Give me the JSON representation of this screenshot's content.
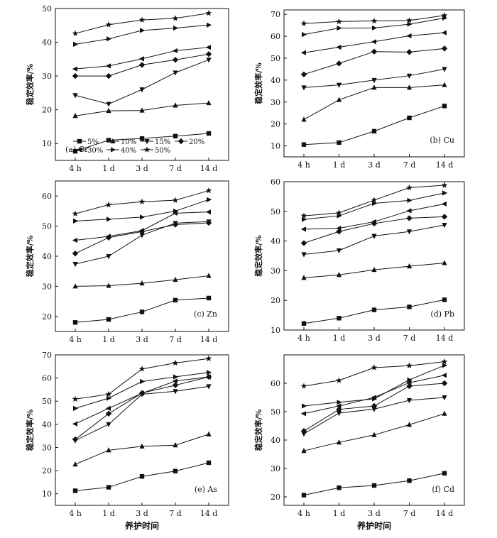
{
  "x_title": "养护时间",
  "legend": [
    "5%",
    "10%",
    "15%",
    "20%",
    "30%",
    "40%",
    "50%"
  ],
  "chart_data": [
    {
      "type": "line",
      "panel_label": "(a)  Cr",
      "ylabel": "稳定效率/%",
      "categories": [
        "4 h",
        "1 d",
        "3 d",
        "7 d",
        "14 d"
      ],
      "ylim": [
        5,
        50
      ],
      "yticks": [
        10,
        20,
        30,
        40,
        50
      ],
      "series": [
        {
          "name": "5%",
          "values": [
            7.7,
            11.0,
            11.5,
            12.2,
            13.0
          ]
        },
        {
          "name": "10%",
          "values": [
            18.2,
            19.7,
            19.8,
            21.3,
            22.0
          ]
        },
        {
          "name": "15%",
          "values": [
            24.3,
            21.7,
            26.0,
            31.0,
            34.8
          ]
        },
        {
          "name": "20%",
          "values": [
            30.0,
            30.0,
            33.3,
            34.8,
            36.5
          ]
        },
        {
          "name": "30%",
          "values": [
            32.1,
            33.0,
            35.1,
            37.5,
            38.5
          ]
        },
        {
          "name": "40%",
          "values": [
            39.4,
            41.0,
            43.5,
            44.2,
            45.1
          ]
        },
        {
          "name": "50%",
          "values": [
            42.6,
            45.2,
            46.6,
            47.1,
            48.6
          ]
        }
      ]
    },
    {
      "type": "line",
      "panel_label": "(b)  Cu",
      "ylabel": "稳定效率/%",
      "categories": [
        "4 h",
        "1 d",
        "3 d",
        "7 d",
        "14 d"
      ],
      "ylim": [
        5,
        72
      ],
      "yticks": [
        10,
        20,
        30,
        40,
        50,
        60,
        70
      ],
      "series": [
        {
          "name": "5%",
          "values": [
            10.6,
            11.5,
            16.7,
            22.8,
            28.2
          ]
        },
        {
          "name": "10%",
          "values": [
            22.0,
            31.0,
            36.6,
            36.6,
            37.8
          ]
        },
        {
          "name": "15%",
          "values": [
            36.6,
            37.8,
            40.0,
            42.0,
            45.0
          ]
        },
        {
          "name": "20%",
          "values": [
            42.6,
            47.6,
            53.0,
            52.8,
            54.4
          ]
        },
        {
          "name": "30%",
          "values": [
            52.5,
            55.0,
            57.5,
            60.2,
            61.6
          ]
        },
        {
          "name": "40%",
          "values": [
            60.8,
            63.7,
            63.8,
            65.5,
            68.3
          ]
        },
        {
          "name": "50%",
          "values": [
            65.8,
            66.7,
            67.0,
            67.2,
            69.5
          ]
        }
      ]
    },
    {
      "type": "line",
      "panel_label": "(c)  Zn",
      "ylabel": "稳定效率/%",
      "categories": [
        "4 h",
        "1 d",
        "3 d",
        "7 d",
        "14 d"
      ],
      "ylim": [
        15,
        65
      ],
      "yticks": [
        20,
        30,
        40,
        50,
        60
      ],
      "series": [
        {
          "name": "5%",
          "values": [
            18.0,
            19.0,
            21.5,
            25.4,
            26.1
          ]
        },
        {
          "name": "10%",
          "values": [
            30.0,
            30.2,
            31.0,
            32.2,
            33.5
          ]
        },
        {
          "name": "15%",
          "values": [
            37.4,
            40.0,
            47.0,
            51.0,
            51.5
          ]
        },
        {
          "name": "20%",
          "values": [
            40.9,
            46.2,
            48.2,
            50.5,
            51.1
          ]
        },
        {
          "name": "30%",
          "values": [
            45.3,
            46.6,
            48.5,
            54.3,
            54.7
          ]
        },
        {
          "name": "40%",
          "values": [
            51.7,
            52.3,
            53.0,
            55.0,
            58.8
          ]
        },
        {
          "name": "50%",
          "values": [
            54.1,
            57.1,
            58.1,
            58.6,
            61.8
          ]
        }
      ]
    },
    {
      "type": "line",
      "panel_label": "(d)  Pb",
      "ylabel": "稳定效率/%",
      "categories": [
        "4 h",
        "1 d",
        "3 d",
        "7 d",
        "14 d"
      ],
      "ylim": [
        10,
        60
      ],
      "yticks": [
        10,
        20,
        30,
        40,
        50,
        60
      ],
      "series": [
        {
          "name": "5%",
          "values": [
            12.2,
            14.0,
            16.8,
            17.8,
            20.2
          ]
        },
        {
          "name": "10%",
          "values": [
            27.6,
            28.6,
            30.3,
            31.5,
            32.6
          ]
        },
        {
          "name": "15%",
          "values": [
            35.5,
            36.8,
            41.7,
            43.2,
            45.4
          ]
        },
        {
          "name": "20%",
          "values": [
            39.3,
            43.2,
            45.9,
            47.7,
            48.2
          ]
        },
        {
          "name": "30%",
          "values": [
            44.0,
            44.3,
            46.5,
            50.2,
            52.5
          ]
        },
        {
          "name": "40%",
          "values": [
            47.3,
            48.5,
            52.7,
            53.7,
            56.2
          ]
        },
        {
          "name": "50%",
          "values": [
            48.5,
            49.5,
            53.8,
            58.0,
            58.8
          ]
        }
      ]
    },
    {
      "type": "line",
      "panel_label": "(e)  As",
      "ylabel": "稳定效率/%",
      "categories": [
        "4 h",
        "1 d",
        "3 d",
        "7 d",
        "14 d"
      ],
      "ylim": [
        5,
        70
      ],
      "yticks": [
        10,
        20,
        30,
        40,
        50,
        60,
        70
      ],
      "series": [
        {
          "name": "5%",
          "values": [
            11.3,
            12.8,
            17.5,
            19.8,
            23.4
          ]
        },
        {
          "name": "10%",
          "values": [
            22.7,
            28.8,
            30.5,
            31.0,
            35.7
          ]
        },
        {
          "name": "15%",
          "values": [
            33.0,
            40.0,
            53.0,
            54.3,
            56.4
          ]
        },
        {
          "name": "20%",
          "values": [
            33.5,
            44.6,
            53.5,
            56.9,
            60.5
          ]
        },
        {
          "name": "30%",
          "values": [
            40.2,
            46.9,
            53.4,
            58.7,
            60.5
          ]
        },
        {
          "name": "40%",
          "values": [
            46.9,
            51.3,
            58.5,
            60.5,
            62.4
          ]
        },
        {
          "name": "50%",
          "values": [
            50.9,
            53.0,
            63.9,
            66.5,
            68.4
          ]
        }
      ]
    },
    {
      "type": "line",
      "panel_label": "(f)  Cd",
      "ylabel": "稳定效率/%",
      "categories": [
        "4 h",
        "1 d",
        "3 d",
        "7 d",
        "14 d"
      ],
      "ylim": [
        17,
        70
      ],
      "yticks": [
        20,
        30,
        40,
        50,
        60
      ],
      "series": [
        {
          "name": "5%",
          "values": [
            20.6,
            23.2,
            24.0,
            25.7,
            28.3
          ]
        },
        {
          "name": "10%",
          "values": [
            36.2,
            39.2,
            41.8,
            45.4,
            49.3
          ]
        },
        {
          "name": "15%",
          "values": [
            42.2,
            49.5,
            50.9,
            54.0,
            55.0
          ]
        },
        {
          "name": "20%",
          "values": [
            43.2,
            50.8,
            52.0,
            59.0,
            60.0
          ]
        },
        {
          "name": "30%",
          "values": [
            49.3,
            52.0,
            55.0,
            60.2,
            62.8
          ]
        },
        {
          "name": "40%",
          "values": [
            52.0,
            53.3,
            54.5,
            61.2,
            66.3
          ]
        },
        {
          "name": "50%",
          "values": [
            59.0,
            61.0,
            65.5,
            66.2,
            67.6
          ]
        }
      ]
    }
  ]
}
